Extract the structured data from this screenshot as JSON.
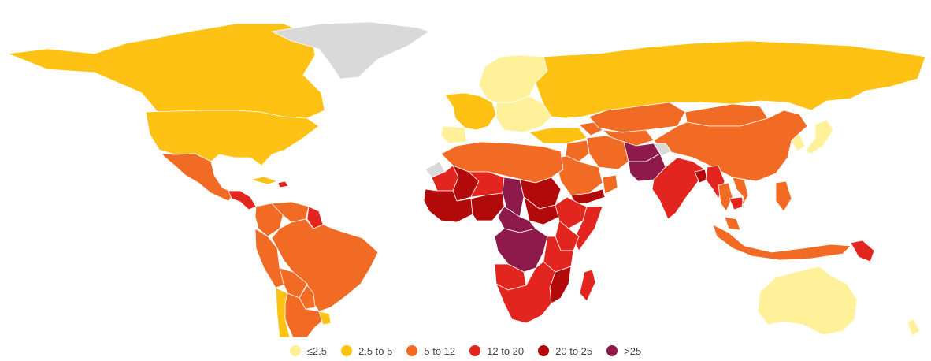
{
  "legend": {
    "items": [
      {
        "label": "≤2.5",
        "color": "#fff09a"
      },
      {
        "label": "2.5 to 5",
        "color": "#fdc213"
      },
      {
        "label": "5 to 12",
        "color": "#f26b24"
      },
      {
        "label": "12 to 20",
        "color": "#e2261f"
      },
      {
        "label": "20 to 25",
        "color": "#b20a0a"
      },
      {
        "label": ">25",
        "color": "#8e1a4b"
      }
    ]
  },
  "no_data_color": "#d9d9d9",
  "regions": [
    {
      "name": "Canada",
      "class": "2.5 to 5"
    },
    {
      "name": "United States",
      "class": "2.5 to 5"
    },
    {
      "name": "Greenland",
      "class": "no data"
    },
    {
      "name": "Mexico",
      "class": "5 to 12"
    },
    {
      "name": "Central America",
      "class": "12 to 20"
    },
    {
      "name": "Cuba",
      "class": "2.5 to 5"
    },
    {
      "name": "Haiti",
      "class": "12 to 20"
    },
    {
      "name": "Venezuela",
      "class": "5 to 12"
    },
    {
      "name": "Guyana",
      "class": "12 to 20"
    },
    {
      "name": "Brazil",
      "class": "5 to 12"
    },
    {
      "name": "Colombia",
      "class": "5 to 12"
    },
    {
      "name": "Peru",
      "class": "5 to 12"
    },
    {
      "name": "Bolivia",
      "class": "5 to 12"
    },
    {
      "name": "Paraguay",
      "class": "5 to 12"
    },
    {
      "name": "Argentina",
      "class": "5 to 12"
    },
    {
      "name": "Chile",
      "class": "2.5 to 5"
    },
    {
      "name": "Uruguay",
      "class": "2.5 to 5"
    },
    {
      "name": "Western Europe",
      "class": "2.5 to 5"
    },
    {
      "name": "Nordic",
      "class": "≤2.5"
    },
    {
      "name": "Central Europe",
      "class": "≤2.5"
    },
    {
      "name": "Iberia",
      "class": "≤2.5"
    },
    {
      "name": "Russia",
      "class": "2.5 to 5"
    },
    {
      "name": "Turkey",
      "class": "2.5 to 5"
    },
    {
      "name": "Caucasus",
      "class": "5 to 12"
    },
    {
      "name": "Kazakhstan",
      "class": "5 to 12"
    },
    {
      "name": "Central Asia",
      "class": "5 to 12"
    },
    {
      "name": "China",
      "class": "5 to 12"
    },
    {
      "name": "Mongolia",
      "class": "5 to 12"
    },
    {
      "name": "Japan",
      "class": "≤2.5"
    },
    {
      "name": "Korea",
      "class": "≤2.5"
    },
    {
      "name": "Iran",
      "class": "5 to 12"
    },
    {
      "name": "Afghanistan",
      "class": ">25"
    },
    {
      "name": "Pakistan",
      "class": ">25"
    },
    {
      "name": "Kashmir",
      "class": "no data"
    },
    {
      "name": "India",
      "class": "12 to 20"
    },
    {
      "name": "Bangladesh",
      "class": "20 to 25"
    },
    {
      "name": "Myanmar",
      "class": "12 to 20"
    },
    {
      "name": "Thailand",
      "class": "5 to 12"
    },
    {
      "name": "Cambodia",
      "class": "12 to 20"
    },
    {
      "name": "Vietnam",
      "class": "5 to 12"
    },
    {
      "name": "Philippines",
      "class": "5 to 12"
    },
    {
      "name": "Malaysia",
      "class": "5 to 12"
    },
    {
      "name": "Indonesia",
      "class": "5 to 12"
    },
    {
      "name": "Papua New Guinea",
      "class": "12 to 20"
    },
    {
      "name": "Saudi Arabia",
      "class": "5 to 12"
    },
    {
      "name": "Yemen",
      "class": "20 to 25"
    },
    {
      "name": "Oman",
      "class": "5 to 12"
    },
    {
      "name": "Iraq",
      "class": "5 to 12"
    },
    {
      "name": "North Africa",
      "class": "5 to 12"
    },
    {
      "name": "Western Sahara",
      "class": "no data"
    },
    {
      "name": "Mauritania",
      "class": "12 to 20"
    },
    {
      "name": "Mali",
      "class": "20 to 25"
    },
    {
      "name": "Niger",
      "class": "12 to 20"
    },
    {
      "name": "Chad",
      "class": ">25"
    },
    {
      "name": "Sudan",
      "class": "20 to 25"
    },
    {
      "name": "South Sudan",
      "class": "20 to 25"
    },
    {
      "name": "Ethiopia",
      "class": "12 to 20"
    },
    {
      "name": "Somalia",
      "class": "12 to 20"
    },
    {
      "name": "Kenya",
      "class": "12 to 20"
    },
    {
      "name": "Nigeria",
      "class": "20 to 25"
    },
    {
      "name": "West Africa",
      "class": "20 to 25"
    },
    {
      "name": "Central African Republic",
      "class": ">25"
    },
    {
      "name": "DR Congo",
      "class": ">25"
    },
    {
      "name": "Tanzania",
      "class": "12 to 20"
    },
    {
      "name": "Mozambique",
      "class": "20 to 25"
    },
    {
      "name": "Angola",
      "class": "12 to 20"
    },
    {
      "name": "Southern Africa",
      "class": "12 to 20"
    },
    {
      "name": "Madagascar",
      "class": "12 to 20"
    },
    {
      "name": "Australia",
      "class": "≤2.5"
    },
    {
      "name": "New Zealand",
      "class": "≤2.5"
    }
  ]
}
